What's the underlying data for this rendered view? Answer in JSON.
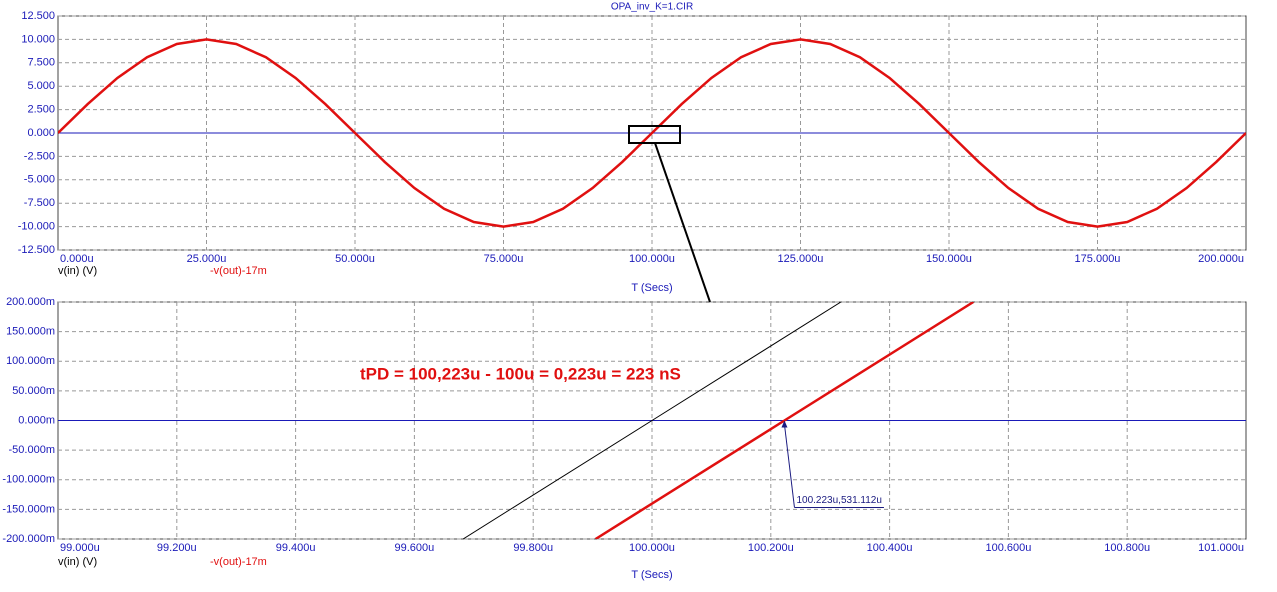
{
  "chart_data": [
    {
      "type": "line",
      "title": "OPA_inv_K=1.CIR",
      "x_label": "T (Secs)",
      "x": [
        0,
        5,
        10,
        15,
        20,
        25,
        30,
        35,
        40,
        45,
        50,
        55,
        60,
        65,
        70,
        75,
        80,
        85,
        90,
        95,
        100,
        105,
        110,
        115,
        120,
        125,
        130,
        135,
        140,
        145,
        150,
        155,
        160,
        165,
        170,
        175,
        180,
        185,
        190,
        195,
        200
      ],
      "series": [
        {
          "name": "v(in) (V)",
          "color": "#000000",
          "values": [
            0,
            3.09,
            5.88,
            8.09,
            9.51,
            10,
            9.51,
            8.09,
            5.88,
            3.09,
            0,
            -3.09,
            -5.88,
            -8.09,
            -9.51,
            -10,
            -9.51,
            -8.09,
            -5.88,
            -3.09,
            0,
            3.09,
            5.88,
            8.09,
            9.51,
            10,
            9.51,
            8.09,
            5.88,
            3.09,
            0,
            -3.09,
            -5.88,
            -8.09,
            -9.51,
            -10,
            -9.51,
            -8.09,
            -5.88,
            -3.09,
            0
          ]
        },
        {
          "name": "-v(out)-17m",
          "color": "#e01010",
          "values": [
            0,
            3.09,
            5.88,
            8.09,
            9.51,
            10,
            9.51,
            8.09,
            5.88,
            3.09,
            0,
            -3.09,
            -5.88,
            -8.09,
            -9.51,
            -10,
            -9.51,
            -8.09,
            -5.88,
            -3.09,
            0,
            3.09,
            5.88,
            8.09,
            9.51,
            10,
            9.51,
            8.09,
            5.88,
            3.09,
            0,
            -3.09,
            -5.88,
            -8.09,
            -9.51,
            -10,
            -9.51,
            -8.09,
            -5.88,
            -3.09,
            0
          ]
        }
      ],
      "xlim": [
        0,
        200
      ],
      "xticks": [
        {
          "value": 0,
          "label": "0.000u"
        },
        {
          "value": 25,
          "label": "25.000u"
        },
        {
          "value": 50,
          "label": "50.000u"
        },
        {
          "value": 75,
          "label": "75.000u"
        },
        {
          "value": 100,
          "label": "100.000u"
        },
        {
          "value": 125,
          "label": "125.000u"
        },
        {
          "value": 150,
          "label": "150.000u"
        },
        {
          "value": 175,
          "label": "175.000u"
        },
        {
          "value": 200,
          "label": "200.000u"
        }
      ],
      "ylim": [
        -12.5,
        12.5
      ],
      "yticks": [
        {
          "value": 12.5,
          "label": "12.500"
        },
        {
          "value": 10,
          "label": "10.000"
        },
        {
          "value": 7.5,
          "label": "7.500"
        },
        {
          "value": 5,
          "label": "5.000"
        },
        {
          "value": 2.5,
          "label": "2.500"
        },
        {
          "value": 0,
          "label": "0.000"
        },
        {
          "value": -2.5,
          "label": "-2.500"
        },
        {
          "value": -5,
          "label": "-5.000"
        },
        {
          "value": -7.5,
          "label": "-7.500"
        },
        {
          "value": -10,
          "label": "-10.000"
        },
        {
          "value": -12.5,
          "label": "-12.500"
        }
      ],
      "grid": true
    },
    {
      "type": "line",
      "x_label": "T (Secs)",
      "series": [
        {
          "name": "v(in) (V)",
          "color": "#000000",
          "x": [
            99.682,
            100,
            100.318
          ],
          "values": [
            -200,
            0,
            200
          ]
        },
        {
          "name": "-v(out)-17m",
          "color": "#e01010",
          "x": [
            99.905,
            100.223,
            100.541
          ],
          "values": [
            -200,
            0,
            200
          ]
        }
      ],
      "xlim": [
        99,
        101
      ],
      "xticks": [
        {
          "value": 99,
          "label": "99.000u"
        },
        {
          "value": 99.2,
          "label": "99.200u"
        },
        {
          "value": 99.4,
          "label": "99.400u"
        },
        {
          "value": 99.6,
          "label": "99.600u"
        },
        {
          "value": 99.8,
          "label": "99.800u"
        },
        {
          "value": 100,
          "label": "100.000u"
        },
        {
          "value": 100.2,
          "label": "100.200u"
        },
        {
          "value": 100.4,
          "label": "100.400u"
        },
        {
          "value": 100.6,
          "label": "100.600u"
        },
        {
          "value": 100.8,
          "label": "100.800u"
        },
        {
          "value": 101,
          "label": "101.000u"
        }
      ],
      "ylim": [
        -200,
        200
      ],
      "yticks": [
        {
          "value": 200,
          "label": "200.000m"
        },
        {
          "value": 150,
          "label": "150.000m"
        },
        {
          "value": 100,
          "label": "100.000m"
        },
        {
          "value": 50,
          "label": "50.000m"
        },
        {
          "value": 0,
          "label": "0.000m"
        },
        {
          "value": -50,
          "label": "-50.000m"
        },
        {
          "value": -100,
          "label": "-100.000m"
        },
        {
          "value": -150,
          "label": "-150.000m"
        },
        {
          "value": -200,
          "label": "-200.000m"
        }
      ],
      "grid": true,
      "note": "tPD = 100,223u - 100u = 0,223u = 223 nS",
      "annotations": [
        {
          "text": "100.223u,531.112u",
          "x": 100.223,
          "y": 0
        }
      ]
    }
  ]
}
